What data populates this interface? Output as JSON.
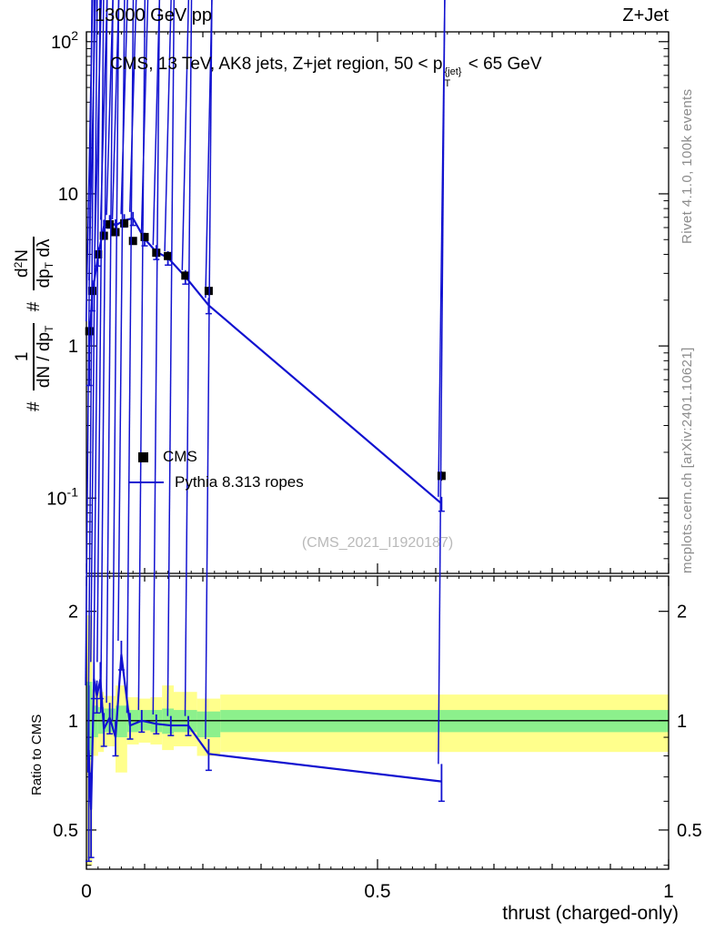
{
  "header": {
    "left": "13000 GeV pp",
    "right": "Z+Jet"
  },
  "title": {
    "pre": "CMS, 13 TeV, AK8 jets, Z+jet region, 50 < p",
    "sup": "{jet}",
    "sub": "T",
    "post": " < 65 GeV"
  },
  "ylabel": {
    "hash1": "#",
    "f1_num": "1",
    "f1_den": "dN / dp",
    "f1_den_sub": "T",
    "hash2": "#",
    "f2_num_a": "d",
    "f2_num_sup": "2",
    "f2_num_b": "N",
    "f2_den_a": "dp",
    "f2_den_sub": "T",
    "f2_den_b": " dλ"
  },
  "legend": {
    "cms": "CMS",
    "pythia": "Pythia 8.313 ropes"
  },
  "watermark": "(CMS_2021_I1920187)",
  "side": {
    "top": "Rivet 4.1.0,  100k events",
    "bottom": "mcplots.cern.ch [arXiv:2401.10621]"
  },
  "ratio": {
    "ylabel": "Ratio to CMS"
  },
  "xaxis": {
    "label": "thrust (charged-only)"
  },
  "chart_data": {
    "type": "line",
    "title": "CMS, 13 TeV, AK8 jets, Z+jet region, 50 < pT{jet} < 65 GeV",
    "xlabel": "thrust (charged-only)",
    "x_range": [
      0,
      1
    ],
    "colors": {
      "mc_line": "#1212d0",
      "band_outer": "#ffff8c",
      "band_inner": "#8cf08c",
      "data_marker": "#000000",
      "watermark_text": "#b9b9b9",
      "side_text": "#8c8c8c"
    },
    "xticks": [
      {
        "v": 0,
        "label": "0"
      },
      {
        "v": 0.5,
        "label": "0.5"
      },
      {
        "v": 1,
        "label": "1"
      }
    ],
    "main_panel": {
      "y_scale": "log",
      "y_range": [
        0.032,
        116
      ],
      "yticks": [
        {
          "v": 100,
          "base": "10",
          "exp": "2"
        },
        {
          "v": 10,
          "base": "10",
          "exp": ""
        },
        {
          "v": 1,
          "base": "1",
          "exp": ""
        },
        {
          "v": 0.1,
          "base": "10",
          "exp": "-1"
        }
      ],
      "x": [
        0.005,
        0.01,
        0.02,
        0.03,
        0.04,
        0.05,
        0.065,
        0.08,
        0.1,
        0.12,
        0.14,
        0.17,
        0.21,
        0.61
      ],
      "cms": {
        "y": [
          1.25,
          2.3,
          4.0,
          5.3,
          6.3,
          5.6,
          6.4,
          4.9,
          5.2,
          4.1,
          3.9,
          2.9,
          2.3,
          0.14
        ],
        "yerr": [
          0.15,
          0.2,
          0.25,
          0.3,
          0.3,
          0.3,
          0.3,
          0.25,
          0.25,
          0.2,
          0.2,
          0.18,
          0.15,
          0.01
        ]
      },
      "pythia": {
        "y": [
          1.0,
          2.2,
          3.9,
          6.1,
          6.6,
          6.2,
          6.7,
          6.9,
          5.05,
          4.15,
          3.8,
          2.85,
          1.85,
          0.092
        ],
        "yerr": [
          0.45,
          0.5,
          0.55,
          0.65,
          0.65,
          0.6,
          0.65,
          0.7,
          0.5,
          0.45,
          0.4,
          0.3,
          0.22,
          0.01
        ]
      }
    },
    "ratio_panel": {
      "y_scale": "log",
      "y_range": [
        0.39,
        2.5
      ],
      "yticks": [
        {
          "v": 2,
          "label": "2"
        },
        {
          "v": 1,
          "label": "1"
        },
        {
          "v": 0.5,
          "label": "0.5"
        }
      ],
      "line": {
        "x": [
          0.004,
          0.008,
          0.013,
          0.018,
          0.024,
          0.03,
          0.04,
          0.05,
          0.06,
          0.075,
          0.095,
          0.12,
          0.145,
          0.175,
          0.21,
          0.61
        ],
        "y": [
          0.83,
          0.57,
          1.3,
          1.17,
          1.3,
          0.95,
          1.02,
          0.9,
          1.52,
          0.97,
          1.0,
          0.98,
          0.97,
          0.97,
          0.81,
          0.68
        ],
        "yerr": [
          0.42,
          0.15,
          0.15,
          0.12,
          0.15,
          0.1,
          0.1,
          0.1,
          0.14,
          0.08,
          0.07,
          0.06,
          0.06,
          0.06,
          0.08,
          0.08
        ]
      },
      "bands": [
        {
          "x0": 0.0,
          "x1": 0.01,
          "ylo": 0.4,
          "yhi": 1.95,
          "glo": 0.78,
          "ghi": 1.28
        },
        {
          "x0": 0.01,
          "x1": 0.02,
          "ylo": 0.8,
          "yhi": 1.22,
          "glo": 0.9,
          "ghi": 1.1
        },
        {
          "x0": 0.02,
          "x1": 0.03,
          "ylo": 0.82,
          "yhi": 1.2,
          "glo": 0.92,
          "ghi": 1.09
        },
        {
          "x0": 0.03,
          "x1": 0.05,
          "ylo": 0.85,
          "yhi": 1.17,
          "glo": 0.93,
          "ghi": 1.08
        },
        {
          "x0": 0.05,
          "x1": 0.07,
          "ylo": 0.72,
          "yhi": 1.25,
          "glo": 0.9,
          "ghi": 1.1
        },
        {
          "x0": 0.07,
          "x1": 0.09,
          "ylo": 0.86,
          "yhi": 1.16,
          "glo": 0.93,
          "ghi": 1.07
        },
        {
          "x0": 0.09,
          "x1": 0.11,
          "ylo": 0.87,
          "yhi": 1.15,
          "glo": 0.94,
          "ghi": 1.07
        },
        {
          "x0": 0.11,
          "x1": 0.13,
          "ylo": 0.86,
          "yhi": 1.16,
          "glo": 0.93,
          "ghi": 1.07
        },
        {
          "x0": 0.13,
          "x1": 0.15,
          "ylo": 0.83,
          "yhi": 1.25,
          "glo": 0.92,
          "ghi": 1.08
        },
        {
          "x0": 0.15,
          "x1": 0.19,
          "ylo": 0.85,
          "yhi": 1.2,
          "glo": 0.93,
          "ghi": 1.07
        },
        {
          "x0": 0.19,
          "x1": 0.23,
          "ylo": 0.8,
          "yhi": 1.15,
          "glo": 0.9,
          "ghi": 1.06
        },
        {
          "x0": 0.23,
          "x1": 1.0,
          "ylo": 0.82,
          "yhi": 1.18,
          "glo": 0.93,
          "ghi": 1.07
        }
      ]
    }
  }
}
